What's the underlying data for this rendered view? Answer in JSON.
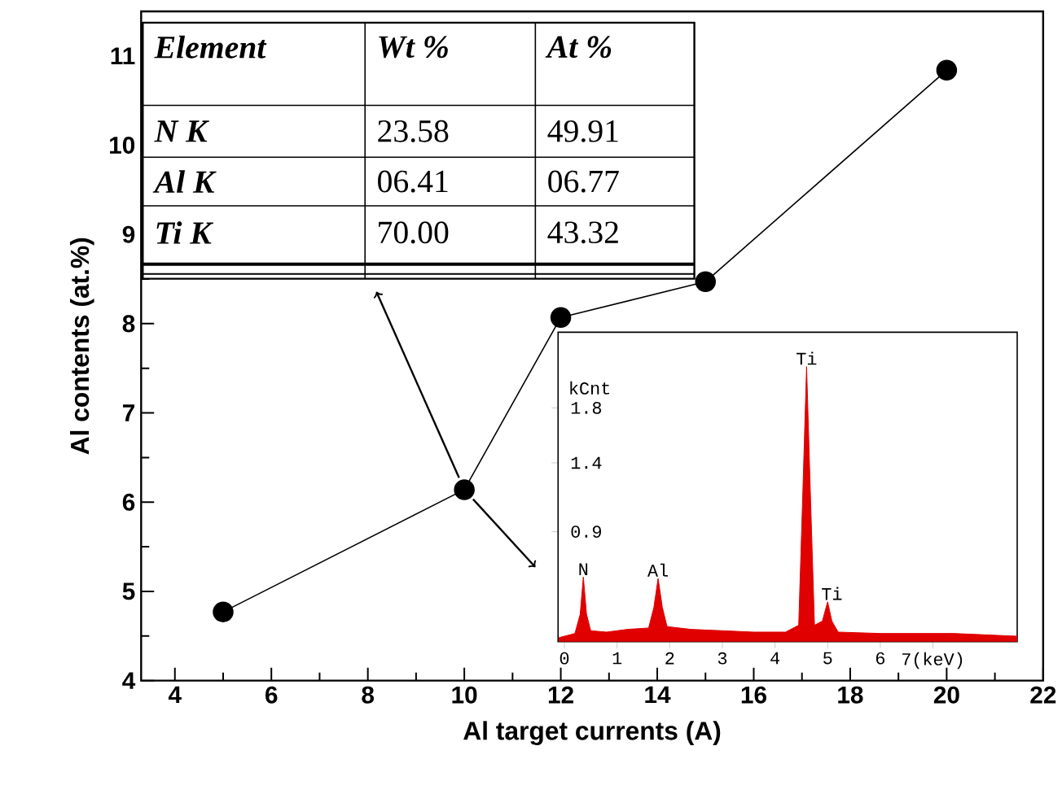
{
  "chart_data": [
    {
      "type": "line",
      "xlabel": "Al target currents (A)",
      "ylabel": "Al contents (at.%)",
      "x": [
        5,
        10,
        12,
        15,
        20
      ],
      "values": [
        4.77,
        6.14,
        8.07,
        8.47,
        10.84
      ],
      "color": "#000000",
      "marker": "circle",
      "xlim": [
        3.3,
        22
      ],
      "ylim": [
        4,
        11.5
      ],
      "xticks": [
        4,
        6,
        8,
        10,
        12,
        14,
        16,
        18,
        20,
        22
      ],
      "yticks": [
        4,
        5,
        6,
        7,
        8,
        9,
        10,
        11
      ],
      "annotations": [
        "Element",
        "Wt %",
        "At %",
        "N K",
        "23.58",
        "49.91",
        "Al K",
        "06.41",
        "06.77",
        "Ti K",
        "70.00",
        "43.32"
      ]
    },
    {
      "type": "area",
      "ylabel": "kCnt",
      "color": "#e00000",
      "x": [
        -0.1,
        0.2,
        0.3,
        0.36,
        0.42,
        0.5,
        0.8,
        1.2,
        1.6,
        1.7,
        1.78,
        1.86,
        1.95,
        2.4,
        3.0,
        3.6,
        4.2,
        4.45,
        4.53,
        4.6,
        4.67,
        4.75,
        4.9,
        5.0,
        5.08,
        5.2,
        6.0,
        7.0,
        7.4,
        8.0,
        8.6
      ],
      "values": [
        0.13,
        0.16,
        0.3,
        0.57,
        0.3,
        0.18,
        0.17,
        0.19,
        0.2,
        0.35,
        0.56,
        0.35,
        0.21,
        0.19,
        0.18,
        0.17,
        0.17,
        0.22,
        1.2,
        2.1,
        1.2,
        0.22,
        0.25,
        0.39,
        0.25,
        0.17,
        0.16,
        0.16,
        0.16,
        0.15,
        0.14
      ],
      "xlim": [
        -0.12,
        8.6
      ],
      "ylim": [
        0.1,
        2.35
      ],
      "xticks": [
        0,
        1,
        2,
        3,
        4,
        5,
        6,
        {
          "value": 7,
          "label": "7(keV)"
        }
      ],
      "yticks": [
        0.9,
        1.4,
        1.8
      ],
      "annotations": [
        {
          "text": "N",
          "x": 0.36,
          "y": 0.57
        },
        {
          "text": "Al",
          "x": 1.78,
          "y": 0.56
        },
        {
          "text": "Ti",
          "x": 4.6,
          "y": 2.1
        },
        {
          "text": "Ti",
          "x": 5.08,
          "y": 0.39
        }
      ]
    }
  ]
}
